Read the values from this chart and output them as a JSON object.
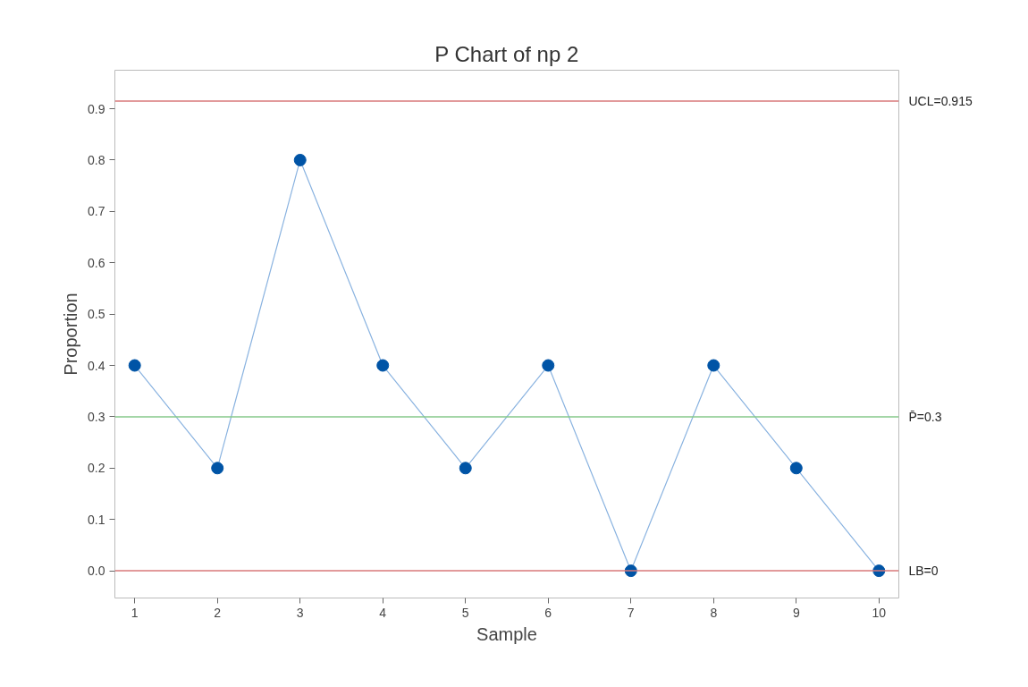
{
  "chart_data": {
    "type": "line",
    "title": "P Chart of np 2",
    "xlabel": "Sample",
    "ylabel": "Proportion",
    "x": [
      1,
      2,
      3,
      4,
      5,
      6,
      7,
      8,
      9,
      10
    ],
    "series": [
      {
        "color": "#0054a6",
        "values": [
          0.4,
          0.2,
          0.8,
          0.4,
          0.2,
          0.4,
          0.0,
          0.4,
          0.2,
          0.0
        ]
      }
    ],
    "xlim": [
      0.76,
      10.24
    ],
    "ylim": [
      -0.053,
      0.975
    ],
    "xticks": [
      1,
      2,
      3,
      4,
      5,
      6,
      7,
      8,
      9,
      10
    ],
    "yticks": [
      {
        "value": 0,
        "label": "0.0"
      },
      0.1,
      0.2,
      0.3,
      0.4,
      0.5,
      0.6,
      0.7,
      0.8,
      0.9
    ],
    "ref_lines": [
      {
        "axis": "y",
        "value": 0.915,
        "label": "UCL=0.915",
        "color": "#d9787a"
      },
      {
        "axis": "y",
        "value": 0.3,
        "label": "P̄=0.3",
        "color": "#86c98a"
      },
      {
        "axis": "y",
        "value": 0,
        "label": "LB=0",
        "color": "#d9787a"
      }
    ],
    "grid": false,
    "marker": "circle",
    "line_style": "solid"
  }
}
